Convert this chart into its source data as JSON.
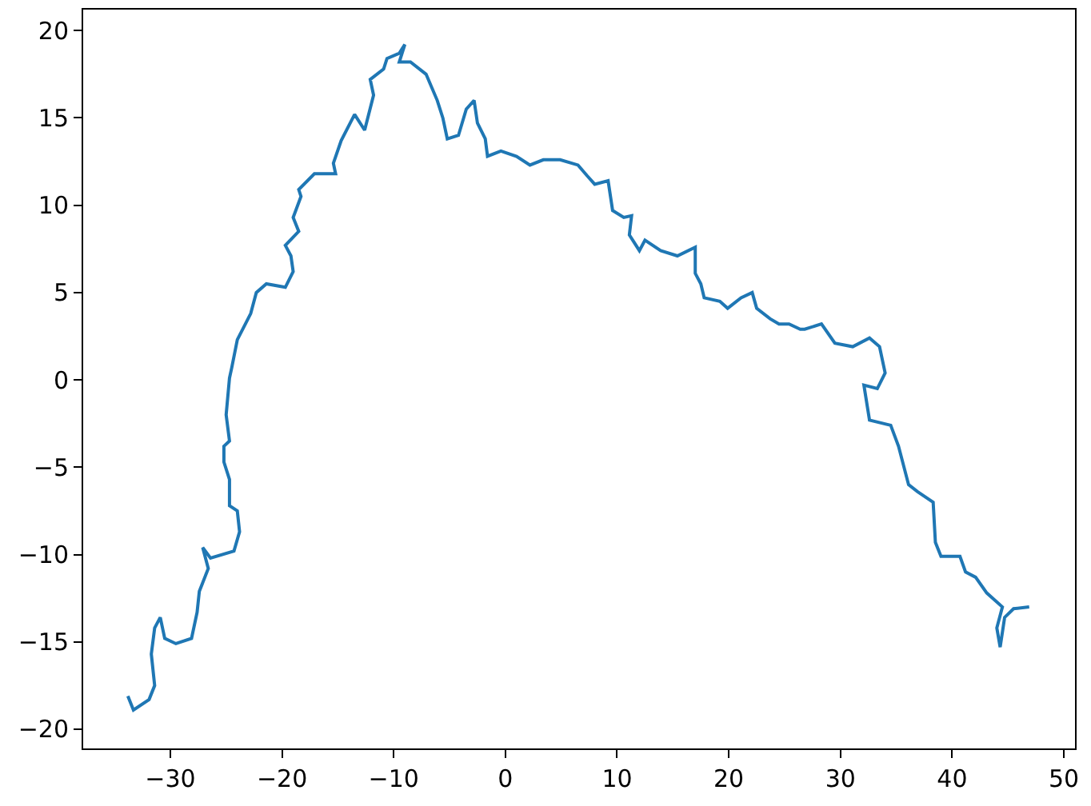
{
  "chart_data": {
    "type": "line",
    "xlim": [
      -37.8,
      51.0
    ],
    "ylim": [
      -21.1,
      21.2
    ],
    "xticks": [
      -30,
      -20,
      -10,
      0,
      10,
      20,
      30,
      40,
      50
    ],
    "yticks": [
      -20,
      -15,
      -10,
      -5,
      0,
      5,
      10,
      15,
      20
    ],
    "grid": false,
    "legend": false,
    "marker": "none",
    "line_style": "solid",
    "series": [
      {
        "color": "#1f77b4",
        "x": [
          -33.8,
          -33.3,
          -31.9,
          -31.4,
          -31.7,
          -31.4,
          -30.9,
          -30.5,
          -29.5,
          -28.1,
          -27.6,
          -27.4,
          -26.6,
          -27.1,
          -26.4,
          -24.3,
          -23.8,
          -24.0,
          -24.7,
          -24.7,
          -25.2,
          -25.2,
          -24.7,
          -25.0,
          -24.7,
          -24.5,
          -24.0,
          -22.8,
          -22.3,
          -21.4,
          -19.7,
          -19.0,
          -19.2,
          -19.7,
          -18.5,
          -19.0,
          -18.3,
          -18.5,
          -17.1,
          -15.2,
          -15.4,
          -14.7,
          -13.5,
          -12.6,
          -11.8,
          -12.1,
          -10.9,
          -10.6,
          -9.5,
          -9.0,
          -9.5,
          -8.5,
          -7.1,
          -6.1,
          -5.6,
          -5.2,
          -4.2,
          -3.5,
          -2.8,
          -2.5,
          -1.8,
          -1.6,
          -0.4,
          1.0,
          2.2,
          3.4,
          4.9,
          6.5,
          7.3,
          8.0,
          9.2,
          9.6,
          10.6,
          11.3,
          11.1,
          12.0,
          12.5,
          13.9,
          15.4,
          17.0,
          17.0,
          17.5,
          17.8,
          19.2,
          19.9,
          21.1,
          22.1,
          22.5,
          23.7,
          24.5,
          25.4,
          26.4,
          26.8,
          28.3,
          29.5,
          31.1,
          32.6,
          33.5,
          34.0,
          33.3,
          32.1,
          32.6,
          34.5,
          35.2,
          36.1,
          36.9,
          38.3,
          38.5,
          39.0,
          40.7,
          41.2,
          42.1,
          43.1,
          44.5,
          44.0,
          44.3,
          44.7,
          45.5,
          46.9
        ],
        "values": [
          -18.1,
          -18.9,
          -18.3,
          -17.5,
          -15.7,
          -14.2,
          -13.6,
          -14.8,
          -15.1,
          -14.8,
          -13.3,
          -12.1,
          -10.8,
          -9.6,
          -10.2,
          -9.8,
          -8.7,
          -7.5,
          -7.2,
          -5.7,
          -4.7,
          -3.8,
          -3.5,
          -2.0,
          0.1,
          0.7,
          2.3,
          3.8,
          5.0,
          5.5,
          5.3,
          6.2,
          7.1,
          7.7,
          8.5,
          9.3,
          10.5,
          10.9,
          11.8,
          11.8,
          12.4,
          13.7,
          15.2,
          14.3,
          16.3,
          17.2,
          17.8,
          18.4,
          18.7,
          19.2,
          18.2,
          18.2,
          17.5,
          16.0,
          15.0,
          13.8,
          14.0,
          15.5,
          16.0,
          14.7,
          13.8,
          12.8,
          13.1,
          12.8,
          12.3,
          12.6,
          12.6,
          12.3,
          11.7,
          11.2,
          11.4,
          9.7,
          9.3,
          9.4,
          8.3,
          7.4,
          8.0,
          7.4,
          7.1,
          7.6,
          6.1,
          5.5,
          4.7,
          4.5,
          4.1,
          4.7,
          5.0,
          4.1,
          3.5,
          3.2,
          3.2,
          2.9,
          2.9,
          3.2,
          2.1,
          1.9,
          2.4,
          1.9,
          0.4,
          -0.5,
          -0.3,
          -2.3,
          -2.6,
          -3.8,
          -6.0,
          -6.4,
          -7.0,
          -9.3,
          -10.1,
          -10.1,
          -11.0,
          -11.3,
          -12.2,
          -13.0,
          -14.2,
          -15.3,
          -13.6,
          -13.1,
          -13.0
        ]
      }
    ]
  }
}
